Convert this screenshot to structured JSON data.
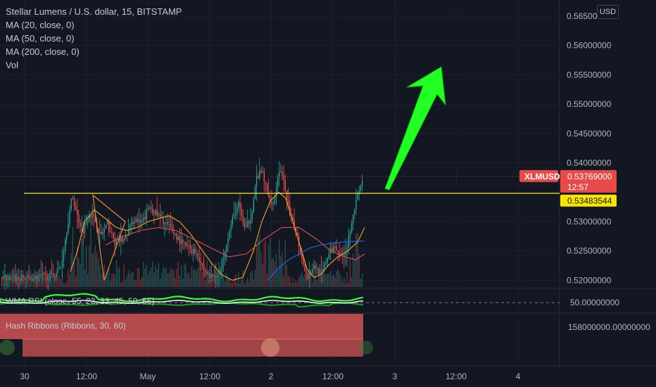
{
  "header": {
    "title": "Stellar Lumens / U.S. dollar, 15, BITSTAMP",
    "indicators": [
      "MA (20, close, 0)",
      "MA (50, close, 0)",
      "MA (200, close, 0)",
      "Vol"
    ],
    "currency_button": "USD"
  },
  "colors": {
    "background": "#131722",
    "grid": "#1e222d",
    "up": "#26a69a",
    "down": "#ef5350",
    "ma20": "#f5a623",
    "ma50": "#e0504b",
    "ma200": "#2962ff",
    "hline": "#f0e42e",
    "arrow": "#22ff22",
    "price_tag": "#e84a4a",
    "hline_tag": "#f7e600",
    "ribbon": "#d25454"
  },
  "chart_data": {
    "type": "line",
    "symbol": "XLMUSD",
    "current_price": "0.53769000",
    "countdown": "12:57",
    "horizontal_line_value": "0.53483544",
    "ylim": [
      0.51885,
      0.56775
    ],
    "y_ticks": [
      "0.56500000",
      "0.56000000",
      "0.55500000",
      "0.55000000",
      "0.54500000",
      "0.54000000",
      "0.53000000",
      "0.52500000",
      "0.52000000"
    ],
    "x_ticks": [
      "30",
      "12:00",
      "May",
      "12:00",
      "2",
      "12:00",
      "3",
      "12:00",
      "4"
    ],
    "price_path": {
      "x": [
        0,
        20,
        40,
        60,
        76,
        86,
        94,
        102,
        110,
        118,
        126,
        134,
        142,
        152,
        162,
        176,
        190,
        200,
        212,
        220,
        232,
        244,
        256,
        268,
        280,
        290,
        300,
        312,
        320,
        330,
        338,
        348,
        356,
        364,
        372,
        380,
        388,
        396,
        404,
        412,
        420,
        428,
        436,
        446,
        456,
        466,
        476,
        484,
        492,
        500,
        508,
        516
      ],
      "values": [
        0.5205,
        0.5203,
        0.5204,
        0.5206,
        0.5208,
        0.5225,
        0.5285,
        0.5345,
        0.5305,
        0.5285,
        0.5315,
        0.5305,
        0.5275,
        0.5295,
        0.5265,
        0.527,
        0.5305,
        0.5295,
        0.5325,
        0.5315,
        0.53,
        0.5285,
        0.5265,
        0.5255,
        0.5245,
        0.5215,
        0.5205,
        0.5215,
        0.526,
        0.5305,
        0.533,
        0.5285,
        0.531,
        0.5375,
        0.5385,
        0.5345,
        0.533,
        0.539,
        0.536,
        0.5305,
        0.5285,
        0.524,
        0.5205,
        0.5225,
        0.521,
        0.5245,
        0.526,
        0.524,
        0.5255,
        0.531,
        0.5345,
        0.5377
      ]
    },
    "series": [
      {
        "name": "MA (20, close, 0)",
        "x": [
          100,
          110,
          120,
          134,
          150,
          165,
          180,
          195,
          210,
          225,
          240,
          255,
          270,
          285,
          300,
          315,
          330,
          345,
          360,
          372,
          384,
          396,
          406,
          416,
          426,
          436,
          446,
          456,
          466,
          480,
          494,
          508,
          518
        ],
        "values": [
          0.5215,
          0.525,
          0.53,
          0.532,
          0.5305,
          0.529,
          0.5285,
          0.529,
          0.53,
          0.5305,
          0.531,
          0.53,
          0.528,
          0.5255,
          0.523,
          0.521,
          0.52,
          0.5205,
          0.525,
          0.53,
          0.5335,
          0.535,
          0.534,
          0.53,
          0.526,
          0.522,
          0.5205,
          0.521,
          0.5225,
          0.524,
          0.525,
          0.5265,
          0.529
        ]
      },
      {
        "name": "MA (50, close, 0)",
        "x": [
          150,
          175,
          200,
          225,
          250,
          275,
          300,
          325,
          350,
          375,
          400,
          425,
          450,
          470,
          490,
          505,
          518
        ],
        "values": [
          0.526,
          0.5275,
          0.5285,
          0.529,
          0.5285,
          0.527,
          0.5255,
          0.524,
          0.5245,
          0.527,
          0.529,
          0.529,
          0.527,
          0.525,
          0.524,
          0.5235,
          0.5245
        ]
      },
      {
        "name": "MA (200, close, 0)",
        "x": [
          380,
          395,
          410,
          425,
          440,
          455,
          470,
          485,
          500,
          518
        ],
        "values": [
          0.52,
          0.522,
          0.5235,
          0.5245,
          0.5255,
          0.526,
          0.5263,
          0.5265,
          0.5266,
          0.5267
        ]
      }
    ],
    "volume": {
      "seed": 7,
      "bar_count": 240
    }
  },
  "rsi_pane": {
    "label": "WMA RSI (close, 55, 23, 33, 45, 50, 56)",
    "value": "50.00000000"
  },
  "hash_pane": {
    "label": "Hash Ribbons (Ribbons, 30, 60)",
    "value": "158000000.00000000"
  }
}
